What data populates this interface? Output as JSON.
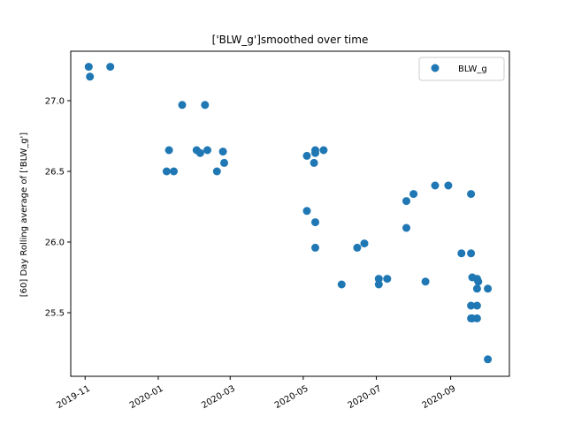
{
  "chart_data": {
    "type": "scatter",
    "title": "['BLW_g']smoothed over time",
    "xlabel": "",
    "ylabel": "[60] Day Rolling average of ['BLW_g']",
    "xlim": [
      "2019-10-20",
      "2020-10-20"
    ],
    "ylim": [
      25.05,
      27.35
    ],
    "x_ticks": [
      "2019-11-01",
      "2020-01-01",
      "2020-03-01",
      "2020-05-01",
      "2020-07-01",
      "2020-09-01"
    ],
    "x_tick_labels": [
      "2019-11",
      "2020-01",
      "2020-03",
      "2020-05",
      "2020-07",
      "2020-09"
    ],
    "y_ticks": [
      25.5,
      26.0,
      26.5,
      27.0
    ],
    "y_tick_labels": [
      "25.5",
      "26.0",
      "26.5",
      "27.0"
    ],
    "grid": false,
    "legend_position": "top-right",
    "color": "#1f77b4",
    "series": [
      {
        "name": "BLW_g",
        "points": [
          [
            "2019-11-04",
            27.24
          ],
          [
            "2019-11-05",
            27.17
          ],
          [
            "2019-11-22",
            27.24
          ],
          [
            "2020-01-08",
            26.5
          ],
          [
            "2020-01-10",
            26.65
          ],
          [
            "2020-01-14",
            26.5
          ],
          [
            "2020-01-21",
            26.97
          ],
          [
            "2020-02-02",
            26.65
          ],
          [
            "2020-02-05",
            26.63
          ],
          [
            "2020-02-09",
            26.97
          ],
          [
            "2020-02-11",
            26.65
          ],
          [
            "2020-02-19",
            26.5
          ],
          [
            "2020-02-24",
            26.64
          ],
          [
            "2020-02-25",
            26.56
          ],
          [
            "2020-05-04",
            26.61
          ],
          [
            "2020-05-04",
            26.22
          ],
          [
            "2020-05-10",
            26.56
          ],
          [
            "2020-05-11",
            26.65
          ],
          [
            "2020-05-11",
            26.63
          ],
          [
            "2020-05-11",
            26.14
          ],
          [
            "2020-05-11",
            25.96
          ],
          [
            "2020-05-18",
            26.65
          ],
          [
            "2020-06-02",
            25.7
          ],
          [
            "2020-06-15",
            25.96
          ],
          [
            "2020-06-21",
            25.99
          ],
          [
            "2020-07-03",
            25.74
          ],
          [
            "2020-07-03",
            25.7
          ],
          [
            "2020-07-10",
            25.74
          ],
          [
            "2020-07-26",
            26.29
          ],
          [
            "2020-07-26",
            26.1
          ],
          [
            "2020-08-01",
            26.34
          ],
          [
            "2020-08-11",
            25.72
          ],
          [
            "2020-08-19",
            26.4
          ],
          [
            "2020-08-30",
            26.4
          ],
          [
            "2020-09-10",
            25.92
          ],
          [
            "2020-09-18",
            26.34
          ],
          [
            "2020-09-18",
            25.92
          ],
          [
            "2020-09-19",
            25.75
          ],
          [
            "2020-09-18",
            25.55
          ],
          [
            "2020-09-18",
            25.46
          ],
          [
            "2020-09-19",
            25.46
          ],
          [
            "2020-09-23",
            25.74
          ],
          [
            "2020-09-24",
            25.72
          ],
          [
            "2020-09-23",
            25.67
          ],
          [
            "2020-09-23",
            25.55
          ],
          [
            "2020-09-23",
            25.46
          ],
          [
            "2020-10-02",
            25.67
          ],
          [
            "2020-10-02",
            25.17
          ]
        ]
      }
    ]
  }
}
